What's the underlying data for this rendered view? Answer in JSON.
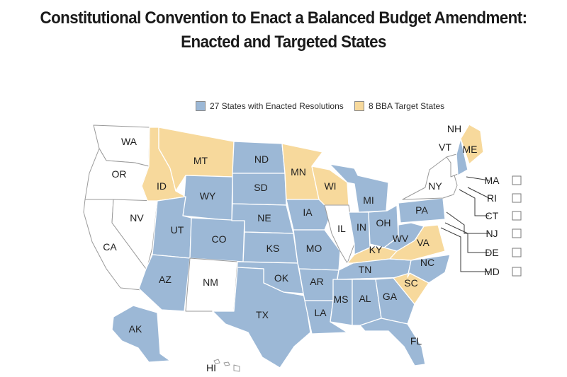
{
  "title_line1": "Constitutional Convention to Enact a Balanced Budget Amendment:",
  "title_line2": "Enacted and Targeted States",
  "legend": {
    "enacted": {
      "label": "27 States with Enacted Resolutions",
      "color": "#9cb8d6"
    },
    "target": {
      "label": "8 BBA Target States",
      "color": "#f7d99c"
    }
  },
  "colors": {
    "enacted": "#9cb8d6",
    "target": "#f7d99c",
    "none": "#ffffff"
  },
  "states": {
    "WA": {
      "label": "WA",
      "status": "none"
    },
    "OR": {
      "label": "OR",
      "status": "none"
    },
    "CA": {
      "label": "CA",
      "status": "none"
    },
    "NV": {
      "label": "NV",
      "status": "none"
    },
    "ID": {
      "label": "ID",
      "status": "target"
    },
    "MT": {
      "label": "MT",
      "status": "target"
    },
    "WY": {
      "label": "WY",
      "status": "enacted"
    },
    "UT": {
      "label": "UT",
      "status": "enacted"
    },
    "AZ": {
      "label": "AZ",
      "status": "enacted"
    },
    "CO": {
      "label": "CO",
      "status": "enacted"
    },
    "NM": {
      "label": "NM",
      "status": "none"
    },
    "ND": {
      "label": "ND",
      "status": "enacted"
    },
    "SD": {
      "label": "SD",
      "status": "enacted"
    },
    "NE": {
      "label": "NE",
      "status": "enacted"
    },
    "KS": {
      "label": "KS",
      "status": "enacted"
    },
    "OK": {
      "label": "OK",
      "status": "enacted"
    },
    "TX": {
      "label": "TX",
      "status": "enacted"
    },
    "MN": {
      "label": "MN",
      "status": "target"
    },
    "IA": {
      "label": "IA",
      "status": "enacted"
    },
    "MO": {
      "label": "MO",
      "status": "enacted"
    },
    "AR": {
      "label": "AR",
      "status": "enacted"
    },
    "LA": {
      "label": "LA",
      "status": "enacted"
    },
    "WI": {
      "label": "WI",
      "status": "target"
    },
    "IL": {
      "label": "IL",
      "status": "none"
    },
    "MI": {
      "label": "MI",
      "status": "enacted"
    },
    "IN": {
      "label": "IN",
      "status": "enacted"
    },
    "OH": {
      "label": "OH",
      "status": "enacted"
    },
    "KY": {
      "label": "KY",
      "status": "target"
    },
    "TN": {
      "label": "TN",
      "status": "enacted"
    },
    "MS": {
      "label": "MS",
      "status": "enacted"
    },
    "AL": {
      "label": "AL",
      "status": "enacted"
    },
    "GA": {
      "label": "GA",
      "status": "enacted"
    },
    "FL": {
      "label": "FL",
      "status": "enacted"
    },
    "SC": {
      "label": "SC",
      "status": "target"
    },
    "NC": {
      "label": "NC",
      "status": "enacted"
    },
    "VA": {
      "label": "VA",
      "status": "target"
    },
    "WV": {
      "label": "WV",
      "status": "enacted"
    },
    "PA": {
      "label": "PA",
      "status": "enacted"
    },
    "NY": {
      "label": "NY",
      "status": "none"
    },
    "VT": {
      "label": "VT",
      "status": "none"
    },
    "NH": {
      "label": "NH",
      "status": "enacted"
    },
    "ME": {
      "label": "ME",
      "status": "target"
    },
    "AK": {
      "label": "AK",
      "status": "enacted"
    },
    "HI": {
      "label": "HI",
      "status": "none"
    }
  },
  "callouts": {
    "MA": {
      "label": "MA",
      "status": "none"
    },
    "RI": {
      "label": "RI",
      "status": "none"
    },
    "CT": {
      "label": "CT",
      "status": "none"
    },
    "NJ": {
      "label": "NJ",
      "status": "none"
    },
    "DE": {
      "label": "DE",
      "status": "none"
    },
    "MD": {
      "label": "MD",
      "status": "none"
    }
  }
}
